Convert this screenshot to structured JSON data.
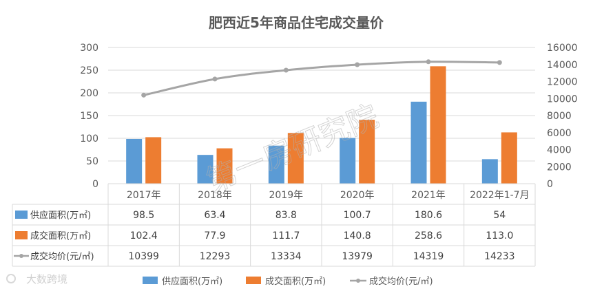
{
  "chart_data": {
    "type": "bar",
    "title": "肥西近5年商品住宅成交量价",
    "categories": [
      "2017年",
      "2018年",
      "2019年",
      "2020年",
      "2021年",
      "2022年1-7月"
    ],
    "series": [
      {
        "name": "供应面积(万㎡)",
        "type": "bar",
        "axis": "left",
        "color": "#5b9bd5",
        "values": [
          98.5,
          63.4,
          83.8,
          100.7,
          180.6,
          54
        ],
        "labels": [
          "98.5",
          "63.4",
          "83.8",
          "100.7",
          "180.6",
          "54"
        ]
      },
      {
        "name": "成交面积(万㎡)",
        "type": "bar",
        "axis": "left",
        "color": "#ed7d31",
        "values": [
          102.4,
          77.9,
          111.7,
          140.8,
          258.6,
          113.0
        ],
        "labels": [
          "102.4",
          "77.9",
          "111.7",
          "140.8",
          "258.6",
          "113.0"
        ]
      },
      {
        "name": "成交均价(元/㎡)",
        "type": "line",
        "axis": "right",
        "color": "#a5a5a5",
        "values": [
          10399,
          12293,
          13334,
          13979,
          14319,
          14233
        ],
        "labels": [
          "10399",
          "12293",
          "13334",
          "13979",
          "14319",
          "14233"
        ]
      }
    ],
    "ylim_left": [
      0,
      300
    ],
    "ylim_right": [
      0,
      16000
    ],
    "yticks_left": [
      "0",
      "50",
      "100",
      "150",
      "200",
      "250",
      "300"
    ],
    "yticks_right": [
      "0",
      "2000",
      "4000",
      "6000",
      "8000",
      "10000",
      "12000",
      "14000",
      "16000"
    ],
    "gridlines": true,
    "data_table": true,
    "legend_position": "bottom"
  },
  "watermark": "第一房研究院",
  "brand_logo": "大数跨境"
}
